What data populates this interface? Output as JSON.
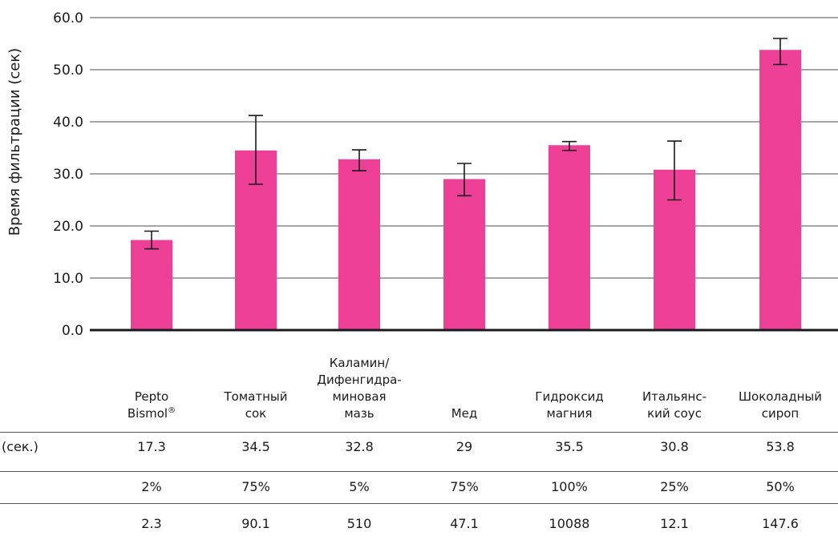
{
  "chart_data": {
    "type": "bar",
    "ylabel": "Время фильтрации (сек)",
    "ylim": [
      0,
      60
    ],
    "yticks": [
      "0.0",
      "10.0",
      "20.0",
      "30.0",
      "40.0",
      "50.0",
      "60.0"
    ],
    "grid": true,
    "bar_color": "#ee3f97",
    "categories": [
      [
        "Pepto",
        "Bismol®"
      ],
      [
        "Томатный",
        "сок"
      ],
      [
        "Каламин/",
        "Дифенгидра-",
        "миновая",
        "мазь"
      ],
      [
        "Мед"
      ],
      [
        "Гидроксид",
        "магния"
      ],
      [
        "Итальянс-",
        "кий соус"
      ],
      [
        "Шоколадный",
        "сироп"
      ]
    ],
    "values": [
      17.3,
      34.5,
      32.8,
      29,
      35.5,
      30.8,
      53.8
    ],
    "error_low": [
      15.6,
      28.0,
      30.6,
      25.8,
      34.5,
      25.0,
      51.0
    ],
    "error_high": [
      19.0,
      41.2,
      34.6,
      32.0,
      36.2,
      36.3,
      56.0
    ]
  },
  "table": {
    "rows": [
      {
        "label": "(сек.)",
        "cells": [
          "17.3",
          "34.5",
          "32.8",
          "29",
          "35.5",
          "30.8",
          "53.8"
        ]
      },
      {
        "label": "",
        "cells": [
          "2%",
          "75%",
          "5%",
          "75%",
          "100%",
          "25%",
          "50%"
        ]
      },
      {
        "label": "",
        "cells": [
          "2.3",
          "90.1",
          "510",
          "47.1",
          "10088",
          "12.1",
          "147.6"
        ]
      }
    ]
  }
}
